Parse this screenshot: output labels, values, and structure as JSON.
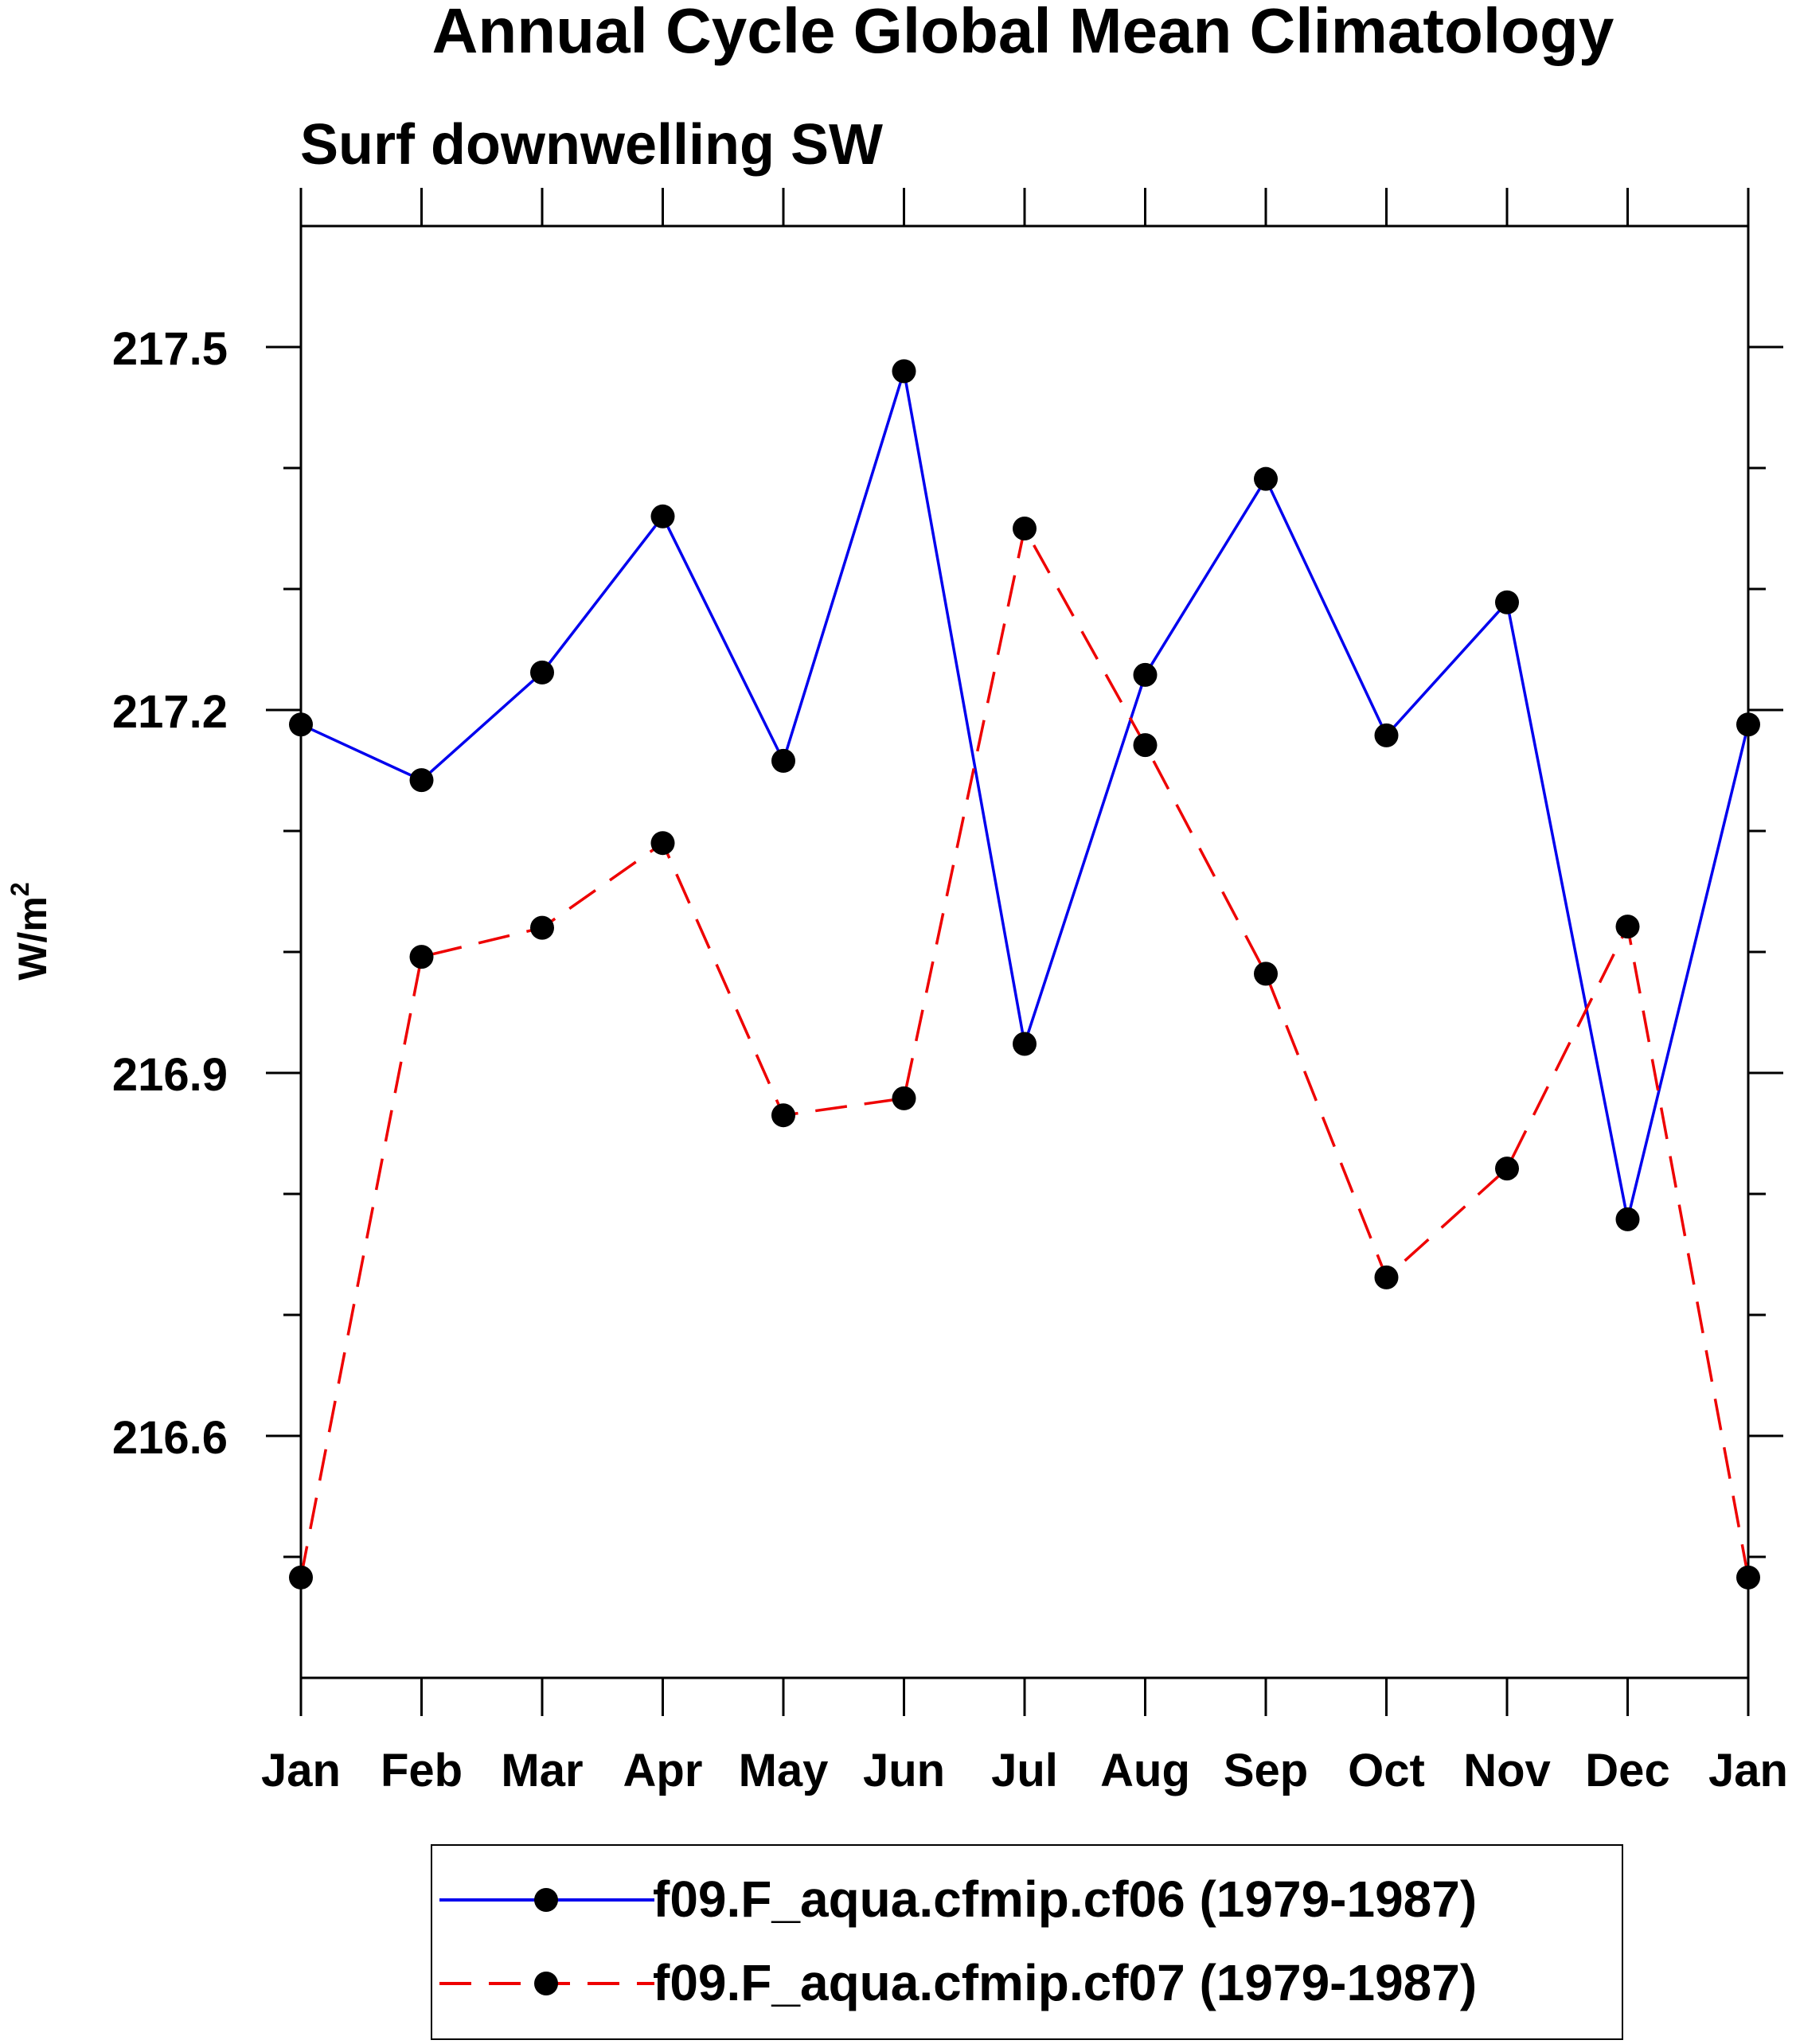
{
  "chart_data": {
    "type": "line",
    "title": "Annual Cycle Global Mean Climatology",
    "subtitle": "Surf downwelling SW",
    "ylabel": "W/m",
    "ylabel_superscript": "2",
    "xlabel": "",
    "categories": [
      "Jan",
      "Feb",
      "Mar",
      "Apr",
      "May",
      "Jun",
      "Jul",
      "Aug",
      "Sep",
      "Oct",
      "Nov",
      "Dec",
      "Jan"
    ],
    "ylim": [
      216.4,
      217.6
    ],
    "yticks": [
      216.6,
      216.9,
      217.2,
      217.5
    ],
    "ytick_labels": [
      "216.6",
      "216.9",
      "217.2",
      "217.5"
    ],
    "yminor_step": 0.1,
    "series": [
      {
        "name": "f09.F_aqua.cfmip.cf06 (1979-1987)",
        "color": "#0000ee",
        "dash": "solid",
        "values": [
          217.188,
          217.142,
          217.231,
          217.36,
          217.158,
          217.48,
          216.924,
          217.229,
          217.391,
          217.179,
          217.289,
          216.779,
          217.188
        ]
      },
      {
        "name": "f09.F_aqua.cfmip.cf07 (1979-1987)",
        "color": "#ee0000",
        "dash": "dashed",
        "values": [
          216.483,
          216.996,
          217.02,
          217.09,
          216.865,
          216.879,
          217.35,
          217.171,
          216.982,
          216.731,
          216.821,
          217.021,
          216.483
        ]
      }
    ],
    "marker": "filled-circle",
    "marker_color": "#000000",
    "legend_position": "bottom"
  }
}
